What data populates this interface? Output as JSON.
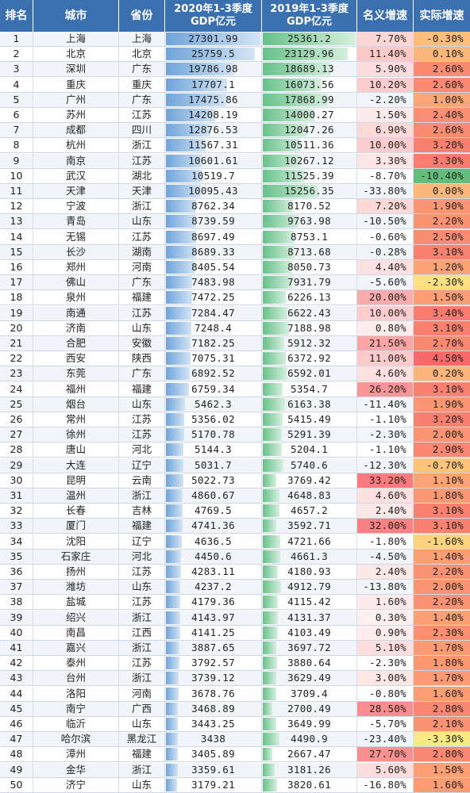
{
  "chart_data": {
    "type": "table",
    "columns": [
      "排名",
      "城市",
      "省份",
      "2020年1-3季度GDP亿元",
      "2019年1-3季度GDP亿元",
      "名义增速",
      "实际增速"
    ],
    "header_lines": {
      "gdp2020": [
        "2020年1-3季度",
        "GDP亿元"
      ],
      "gdp2019": [
        "2019年1-3季度",
        "GDP亿元"
      ]
    },
    "rows": [
      {
        "rank": "1",
        "city": "上海",
        "province": "上海",
        "gdp2020": "27301.99",
        "gdp2019": "25361.2",
        "nominal": "7.70%",
        "real": "-0.30%"
      },
      {
        "rank": "2",
        "city": "北京",
        "province": "北京",
        "gdp2020": "25759.5",
        "gdp2019": "23129.96",
        "nominal": "11.40%",
        "real": "0.10%"
      },
      {
        "rank": "3",
        "city": "深圳",
        "province": "广东",
        "gdp2020": "19786.98",
        "gdp2019": "18689.13",
        "nominal": "5.90%",
        "real": "2.60%"
      },
      {
        "rank": "4",
        "city": "重庆",
        "province": "重庆",
        "gdp2020": "17707.1",
        "gdp2019": "16073.56",
        "nominal": "10.20%",
        "real": "2.60%"
      },
      {
        "rank": "5",
        "city": "广州",
        "province": "广东",
        "gdp2020": "17475.86",
        "gdp2019": "17868.99",
        "nominal": "-2.20%",
        "real": "1.00%"
      },
      {
        "rank": "6",
        "city": "苏州",
        "province": "江苏",
        "gdp2020": "14208.19",
        "gdp2019": "14000.27",
        "nominal": "1.50%",
        "real": "2.40%"
      },
      {
        "rank": "7",
        "city": "成都",
        "province": "四川",
        "gdp2020": "12876.53",
        "gdp2019": "12047.26",
        "nominal": "6.90%",
        "real": "2.60%"
      },
      {
        "rank": "8",
        "city": "杭州",
        "province": "浙江",
        "gdp2020": "11567.31",
        "gdp2019": "10511.36",
        "nominal": "10.00%",
        "real": "3.20%"
      },
      {
        "rank": "9",
        "city": "南京",
        "province": "江苏",
        "gdp2020": "10601.61",
        "gdp2019": "10267.12",
        "nominal": "3.30%",
        "real": "3.30%"
      },
      {
        "rank": "10",
        "city": "武汉",
        "province": "湖北",
        "gdp2020": "10519.7",
        "gdp2019": "11525.39",
        "nominal": "-8.70%",
        "real": "-10.40%"
      },
      {
        "rank": "11",
        "city": "天津",
        "province": "天津",
        "gdp2020": "10095.43",
        "gdp2019": "15256.35",
        "nominal": "-33.80%",
        "real": "0.00%"
      },
      {
        "rank": "12",
        "city": "宁波",
        "province": "浙江",
        "gdp2020": "8762.34",
        "gdp2019": "8170.52",
        "nominal": "7.20%",
        "real": "1.90%"
      },
      {
        "rank": "13",
        "city": "青岛",
        "province": "山东",
        "gdp2020": "8739.59",
        "gdp2019": "9763.98",
        "nominal": "-10.50%",
        "real": "2.20%"
      },
      {
        "rank": "14",
        "city": "无锡",
        "province": "江苏",
        "gdp2020": "8697.49",
        "gdp2019": "8753.1",
        "nominal": "-0.60%",
        "real": "2.50%"
      },
      {
        "rank": "15",
        "city": "长沙",
        "province": "湖南",
        "gdp2020": "8689.33",
        "gdp2019": "8713.68",
        "nominal": "-0.28%",
        "real": "3.10%"
      },
      {
        "rank": "16",
        "city": "郑州",
        "province": "河南",
        "gdp2020": "8405.54",
        "gdp2019": "8050.73",
        "nominal": "4.40%",
        "real": "1.20%"
      },
      {
        "rank": "17",
        "city": "佛山",
        "province": "广东",
        "gdp2020": "7483.98",
        "gdp2019": "7931.79",
        "nominal": "-5.60%",
        "real": "-2.30%"
      },
      {
        "rank": "18",
        "city": "泉州",
        "province": "福建",
        "gdp2020": "7472.25",
        "gdp2019": "6226.13",
        "nominal": "20.00%",
        "real": "1.50%"
      },
      {
        "rank": "19",
        "city": "南通",
        "province": "江苏",
        "gdp2020": "7284.47",
        "gdp2019": "6622.43",
        "nominal": "10.00%",
        "real": "3.40%"
      },
      {
        "rank": "20",
        "city": "济南",
        "province": "山东",
        "gdp2020": "7248.4",
        "gdp2019": "7188.98",
        "nominal": "0.80%",
        "real": "3.10%"
      },
      {
        "rank": "21",
        "city": "合肥",
        "province": "安徽",
        "gdp2020": "7182.25",
        "gdp2019": "5912.32",
        "nominal": "21.50%",
        "real": "2.70%"
      },
      {
        "rank": "22",
        "city": "西安",
        "province": "陕西",
        "gdp2020": "7075.31",
        "gdp2019": "6372.92",
        "nominal": "11.00%",
        "real": "4.50%"
      },
      {
        "rank": "23",
        "city": "东莞",
        "province": "广东",
        "gdp2020": "6892.52",
        "gdp2019": "6592.01",
        "nominal": "4.60%",
        "real": "0.20%"
      },
      {
        "rank": "24",
        "city": "福州",
        "province": "福建",
        "gdp2020": "6759.34",
        "gdp2019": "5354.7",
        "nominal": "26.20%",
        "real": "3.10%"
      },
      {
        "rank": "25",
        "city": "烟台",
        "province": "山东",
        "gdp2020": "5462.3",
        "gdp2019": "6163.38",
        "nominal": "-11.40%",
        "real": "1.90%"
      },
      {
        "rank": "26",
        "city": "常州",
        "province": "江苏",
        "gdp2020": "5356.02",
        "gdp2019": "5415.49",
        "nominal": "-1.10%",
        "real": "3.20%"
      },
      {
        "rank": "27",
        "city": "徐州",
        "province": "江苏",
        "gdp2020": "5170.78",
        "gdp2019": "5291.39",
        "nominal": "-2.30%",
        "real": "2.00%"
      },
      {
        "rank": "28",
        "city": "唐山",
        "province": "河北",
        "gdp2020": "5144.3",
        "gdp2019": "5204.1",
        "nominal": "-1.10%",
        "real": "2.90%"
      },
      {
        "rank": "29",
        "city": "大连",
        "province": "辽宁",
        "gdp2020": "5031.7",
        "gdp2019": "5740.6",
        "nominal": "-12.30%",
        "real": "-0.70%"
      },
      {
        "rank": "30",
        "city": "昆明",
        "province": "云南",
        "gdp2020": "5022.73",
        "gdp2019": "3769.42",
        "nominal": "33.20%",
        "real": "1.10%"
      },
      {
        "rank": "31",
        "city": "温州",
        "province": "浙江",
        "gdp2020": "4860.67",
        "gdp2019": "4648.83",
        "nominal": "4.60%",
        "real": "1.80%"
      },
      {
        "rank": "32",
        "city": "长春",
        "province": "吉林",
        "gdp2020": "4769.5",
        "gdp2019": "4657.2",
        "nominal": "2.40%",
        "real": "3.10%"
      },
      {
        "rank": "33",
        "city": "厦门",
        "province": "福建",
        "gdp2020": "4741.36",
        "gdp2019": "3592.71",
        "nominal": "32.00%",
        "real": "3.10%"
      },
      {
        "rank": "34",
        "city": "沈阳",
        "province": "辽宁",
        "gdp2020": "4636.5",
        "gdp2019": "4721.66",
        "nominal": "-1.80%",
        "real": "-1.60%"
      },
      {
        "rank": "35",
        "city": "石家庄",
        "province": "河北",
        "gdp2020": "4450.6",
        "gdp2019": "4661.3",
        "nominal": "-4.50%",
        "real": "1.40%"
      },
      {
        "rank": "36",
        "city": "扬州",
        "province": "江苏",
        "gdp2020": "4283.11",
        "gdp2019": "4180.93",
        "nominal": "2.40%",
        "real": "2.20%"
      },
      {
        "rank": "37",
        "city": "潍坊",
        "province": "山东",
        "gdp2020": "4237.2",
        "gdp2019": "4912.79",
        "nominal": "-13.80%",
        "real": "2.00%"
      },
      {
        "rank": "38",
        "city": "盐城",
        "province": "江苏",
        "gdp2020": "4179.36",
        "gdp2019": "4115.42",
        "nominal": "1.60%",
        "real": "2.20%"
      },
      {
        "rank": "39",
        "city": "绍兴",
        "province": "浙江",
        "gdp2020": "4143.97",
        "gdp2019": "4131.37",
        "nominal": "0.30%",
        "real": "1.40%"
      },
      {
        "rank": "40",
        "city": "南昌",
        "province": "江西",
        "gdp2020": "4141.25",
        "gdp2019": "4103.49",
        "nominal": "0.90%",
        "real": "2.30%"
      },
      {
        "rank": "41",
        "city": "嘉兴",
        "province": "浙江",
        "gdp2020": "3887.65",
        "gdp2019": "3697.72",
        "nominal": "5.10%",
        "real": "1.70%"
      },
      {
        "rank": "42",
        "city": "泰州",
        "province": "江苏",
        "gdp2020": "3792.57",
        "gdp2019": "3880.64",
        "nominal": "-2.30%",
        "real": "1.80%"
      },
      {
        "rank": "43",
        "city": "台州",
        "province": "浙江",
        "gdp2020": "3739.12",
        "gdp2019": "3629.49",
        "nominal": "3.00%",
        "real": "1.70%"
      },
      {
        "rank": "44",
        "city": "洛阳",
        "province": "河南",
        "gdp2020": "3678.76",
        "gdp2019": "3709.4",
        "nominal": "-0.80%",
        "real": "1.60%"
      },
      {
        "rank": "45",
        "city": "南宁",
        "province": "广西",
        "gdp2020": "3468.89",
        "gdp2019": "2700.49",
        "nominal": "28.50%",
        "real": "2.80%"
      },
      {
        "rank": "46",
        "city": "临沂",
        "province": "山东",
        "gdp2020": "3443.25",
        "gdp2019": "3649.99",
        "nominal": "-5.70%",
        "real": "2.10%"
      },
      {
        "rank": "47",
        "city": "哈尔滨",
        "province": "黑龙江",
        "gdp2020": "3438",
        "gdp2019": "4490.9",
        "nominal": "-23.40%",
        "real": "-3.30%"
      },
      {
        "rank": "48",
        "city": "漳州",
        "province": "福建",
        "gdp2020": "3405.89",
        "gdp2019": "2667.47",
        "nominal": "27.70%",
        "real": "2.80%"
      },
      {
        "rank": "49",
        "city": "金华",
        "province": "浙江",
        "gdp2020": "3359.61",
        "gdp2019": "3181.26",
        "nominal": "5.60%",
        "real": "1.50%"
      },
      {
        "rank": "50",
        "city": "济宁",
        "province": "山东",
        "gdp2020": "3179.21",
        "gdp2019": "3820.61",
        "nominal": "-16.80%",
        "real": "1.60%"
      }
    ]
  },
  "colors": {
    "header_bg": "#3a6fb0",
    "bar_2020": "#6fa4da",
    "bar_2019": "#67c18a",
    "nominal_positive": "#f8696b",
    "real_low": "#63be7b",
    "real_mid": "#ffeb84",
    "real_high": "#f8696b"
  }
}
